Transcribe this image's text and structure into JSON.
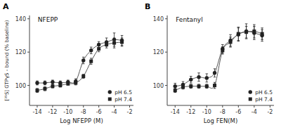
{
  "chart_data": [
    {
      "type": "scatter",
      "title": "NFEPP",
      "annotations": [
        "A"
      ],
      "x_label": "Log NFEPP (M)",
      "y_label": "[³⁵S] GTPγS - bound (% baseline)",
      "x": [
        -14,
        -13,
        -12,
        -11,
        -10,
        -9,
        -8,
        -7,
        -6,
        -5,
        -4,
        -3
      ],
      "series": [
        {
          "name": "pH 6.5",
          "color": "#222222",
          "marker": "circle",
          "values": [
            101.5,
            101.5,
            102.0,
            101.5,
            102.0,
            102.5,
            115.0,
            121.0,
            124.5,
            126.0,
            127.5,
            127.0
          ],
          "errors": [
            1.2,
            1.2,
            1.2,
            1.2,
            1.2,
            1.5,
            2.0,
            2.0,
            1.8,
            2.5,
            4.0,
            3.0
          ]
        },
        {
          "name": "pH 7.4",
          "color": "#222222",
          "marker": "square",
          "values": [
            97.0,
            98.0,
            99.5,
            100.0,
            101.0,
            101.5,
            105.5,
            114.5,
            122.0,
            124.5,
            125.5,
            126.0
          ],
          "errors": [
            1.2,
            1.2,
            1.0,
            1.0,
            0.8,
            1.2,
            1.2,
            1.8,
            1.8,
            2.0,
            3.0,
            2.5
          ]
        }
      ],
      "color": "#555555",
      "line_style": "smooth",
      "xlim": [
        -15,
        -1.5
      ],
      "xticks": [
        -14,
        -12,
        -10,
        -8,
        -6,
        -4,
        -2
      ],
      "ylim": [
        88,
        142
      ],
      "yticks": [
        100,
        120,
        140
      ],
      "grid": false,
      "legend": "lower right"
    },
    {
      "type": "scatter",
      "title": "Fentanyl",
      "annotations": [
        "B"
      ],
      "x_label": "Log FEN(M)",
      "x": [
        -14,
        -13,
        -12,
        -11,
        -10,
        -9,
        -8,
        -7,
        -6,
        -5,
        -4,
        -3
      ],
      "series": [
        {
          "name": "pH 6.5",
          "color": "#222222",
          "marker": "circle",
          "values": [
            99.5,
            100.5,
            103.5,
            105.0,
            104.5,
            107.5,
            122.0,
            127.0,
            130.5,
            132.5,
            131.5,
            130.0
          ],
          "errors": [
            1.8,
            1.8,
            2.0,
            2.5,
            2.5,
            2.5,
            2.5,
            3.5,
            4.0,
            4.5,
            4.0,
            3.5
          ]
        },
        {
          "name": "pH 7.4",
          "color": "#222222",
          "marker": "square",
          "values": [
            97.0,
            99.0,
            99.5,
            99.5,
            99.5,
            100.0,
            121.0,
            126.0,
            131.0,
            132.0,
            132.5,
            131.0
          ],
          "errors": [
            1.2,
            1.2,
            1.2,
            1.2,
            1.2,
            1.8,
            2.2,
            3.0,
            4.0,
            3.5,
            4.0,
            3.5
          ]
        }
      ],
      "color": "#555555",
      "line_style": "smooth",
      "xlim": [
        -15,
        -1.5
      ],
      "xticks": [
        -14,
        -12,
        -10,
        -8,
        -6,
        -4,
        -2
      ],
      "ylim": [
        88,
        142
      ],
      "yticks": [
        100,
        120,
        140
      ],
      "grid": false,
      "legend": "lower right"
    }
  ]
}
